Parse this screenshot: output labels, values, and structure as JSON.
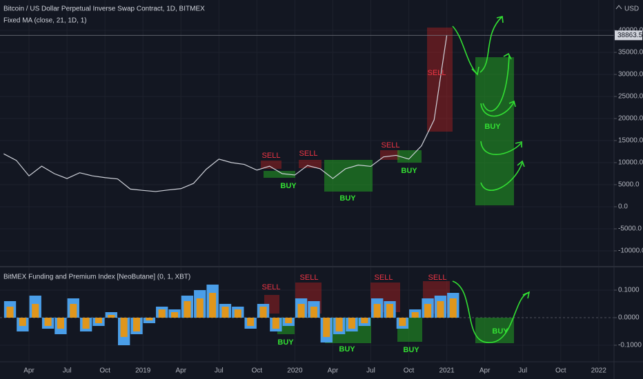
{
  "chart_data": [
    {
      "type": "line",
      "title": "Bitcoin / US Dollar Perpetual Inverse Swap Contract, 1D, BITMEX",
      "subtitle": "Fixed MA (close, 21, 1D, 1)",
      "currency": "USD",
      "x": [
        "2018-02",
        "2018-03",
        "2018-04",
        "2018-05",
        "2018-06",
        "2018-07",
        "2018-08",
        "2018-09",
        "2018-10",
        "2018-11",
        "2018-12",
        "2019-01",
        "2019-02",
        "2019-03",
        "2019-04",
        "2019-05",
        "2019-06",
        "2019-07",
        "2019-08",
        "2019-09",
        "2019-10",
        "2019-11",
        "2019-12",
        "2020-01",
        "2020-02",
        "2020-03",
        "2020-04",
        "2020-05",
        "2020-06",
        "2020-07",
        "2020-08",
        "2020-09",
        "2020-10",
        "2020-11",
        "2020-12",
        "2021-01"
      ],
      "series": [
        {
          "color": "#d1d4dc",
          "values": [
            12000,
            10500,
            7000,
            9200,
            7500,
            6400,
            7700,
            7000,
            6600,
            6300,
            4000,
            3700,
            3450,
            3800,
            4100,
            5300,
            8500,
            10800,
            10000,
            9600,
            8300,
            9200,
            7500,
            7200,
            9350,
            8600,
            6400,
            8600,
            9450,
            9150,
            11300,
            11650,
            10800,
            13800,
            19700,
            38863.5
          ]
        }
      ],
      "ylim": [
        -13437.5,
        46875
      ],
      "yticks": [
        {
          "value": 40000,
          "label": "40000.0"
        },
        {
          "value": 35000,
          "label": "35000.0"
        },
        {
          "value": 30000,
          "label": "30000.0"
        },
        {
          "value": 25000,
          "label": "25000.0"
        },
        {
          "value": 20000,
          "label": "20000.0"
        },
        {
          "value": 15000,
          "label": "15000.0"
        },
        {
          "value": 10000,
          "label": "10000.0"
        },
        {
          "value": 5000,
          "label": "5000.0"
        },
        {
          "value": 0,
          "label": "0.0"
        },
        {
          "value": -5000,
          "label": "-5000.0"
        },
        {
          "value": -10000,
          "label": "-10000.0"
        }
      ],
      "xticks": [
        {
          "value": "2018-04",
          "label": "Apr"
        },
        {
          "value": "2018-07",
          "label": "Jul"
        },
        {
          "value": "2018-10",
          "label": "Oct"
        },
        {
          "value": "2019-01",
          "label": "2019"
        },
        {
          "value": "2019-04",
          "label": "Apr"
        },
        {
          "value": "2019-07",
          "label": "Jul"
        },
        {
          "value": "2019-10",
          "label": "Oct"
        },
        {
          "value": "2020-01",
          "label": "2020"
        },
        {
          "value": "2020-04",
          "label": "Apr"
        },
        {
          "value": "2020-07",
          "label": "Jul"
        },
        {
          "value": "2020-10",
          "label": "Oct"
        },
        {
          "value": "2021-01",
          "label": "2021"
        },
        {
          "value": "2021-04",
          "label": "Apr"
        },
        {
          "value": "2021-07",
          "label": "Jul"
        },
        {
          "value": "2021-10",
          "label": "Oct"
        },
        {
          "value": "2022-01",
          "label": "2022"
        }
      ],
      "grid": true,
      "annotations": [
        "SELL",
        "BUY",
        "SELL",
        "BUY",
        "SELL",
        "BUY",
        "SELL",
        "BUY"
      ]
    },
    {
      "type": "bar",
      "title": "BitMEX Funding and Premium Index [NeoButane] (0, 1, XBT)",
      "x": [
        "2018-02",
        "2018-03",
        "2018-04",
        "2018-05",
        "2018-06",
        "2018-07",
        "2018-08",
        "2018-09",
        "2018-10",
        "2018-11",
        "2018-12",
        "2019-01",
        "2019-02",
        "2019-03",
        "2019-04",
        "2019-05",
        "2019-06",
        "2019-07",
        "2019-08",
        "2019-09",
        "2019-10",
        "2019-11",
        "2019-12",
        "2020-01",
        "2020-02",
        "2020-03",
        "2020-04",
        "2020-05",
        "2020-06",
        "2020-07",
        "2020-08",
        "2020-09",
        "2020-10",
        "2020-11",
        "2020-12",
        "2021-01"
      ],
      "series": [
        {
          "color": "#4a9ee8",
          "values": [
            0.06,
            -0.05,
            0.08,
            -0.04,
            -0.06,
            0.07,
            -0.05,
            -0.03,
            0.02,
            -0.1,
            -0.06,
            -0.02,
            0.04,
            0.03,
            0.08,
            0.1,
            0.12,
            0.05,
            0.04,
            -0.04,
            0.05,
            -0.05,
            -0.03,
            0.07,
            0.06,
            -0.09,
            -0.06,
            -0.05,
            -0.03,
            0.07,
            0.06,
            -0.04,
            0.03,
            0.07,
            0.08,
            0.09
          ]
        },
        {
          "color": "#e0961c",
          "values": [
            0.04,
            -0.03,
            0.05,
            -0.03,
            -0.04,
            0.05,
            -0.04,
            -0.02,
            0.01,
            -0.07,
            -0.05,
            -0.01,
            0.03,
            0.02,
            0.06,
            0.07,
            0.09,
            0.04,
            0.03,
            -0.03,
            0.04,
            -0.04,
            -0.02,
            0.05,
            0.04,
            -0.07,
            -0.05,
            -0.04,
            -0.02,
            0.05,
            0.05,
            -0.03,
            0.02,
            0.05,
            0.06,
            0.07
          ]
        }
      ],
      "ylim": [
        -0.16,
        0.1825
      ],
      "yticks": [
        {
          "value": 0.1,
          "label": "0.1000"
        },
        {
          "value": 0,
          "label": "0.0000"
        },
        {
          "value": -0.1,
          "label": "-0.1000"
        }
      ],
      "annotations": [
        "SELL",
        "SELL",
        "BUY",
        "BUY",
        "SELL",
        "BUY",
        "SELL",
        "BUY"
      ]
    }
  ]
}
